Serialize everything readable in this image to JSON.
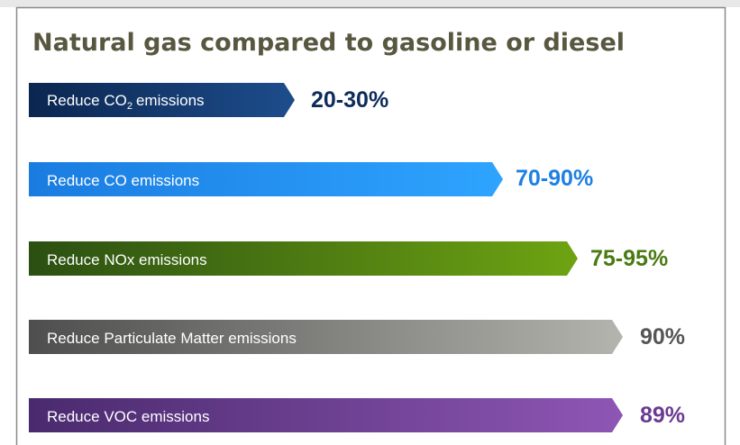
{
  "header": {
    "title": "Natural gas compared to gasoline or diesel"
  },
  "items": [
    {
      "label": "Reduce CO",
      "label_sub": "2",
      "label_end": "emissions",
      "value": "20-30%"
    },
    {
      "label": "Reduce CO emissions",
      "value": "70-90%"
    },
    {
      "label": "Reduce NOx emissions",
      "value": "75-95%"
    },
    {
      "label": "Reduce Particulate Matter emissions",
      "value": "90%"
    },
    {
      "label": "Reduce VOC emissions",
      "value": "89%"
    }
  ]
}
